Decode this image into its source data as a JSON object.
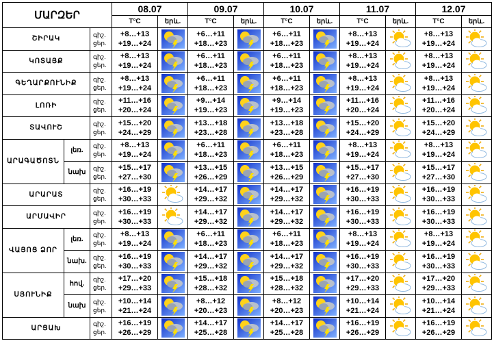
{
  "header": {
    "title": "ՄԱՐԶԵՐ",
    "dates": [
      "08.07",
      "09.07",
      "10.07",
      "11.07",
      "12.07"
    ],
    "temp_label": "T°C",
    "icon_label": "երև."
  },
  "labels": {
    "night": "գիշ.",
    "day": "ցեր."
  },
  "regions": [
    {
      "name": "ՇԻՐԱԿ",
      "zones": [
        {
          "forecast": [
            {
              "night": "+8…+13",
              "day": "+19…+24"
            },
            {
              "night": "+6…+11",
              "day": "+18…+23"
            },
            {
              "night": "+6…+11",
              "day": "+18…+23"
            },
            {
              "night": "+8…+13",
              "day": "+19…+24"
            },
            {
              "night": "+8…+13",
              "day": "+19…+24"
            }
          ]
        }
      ]
    },
    {
      "name": "ԿՈՏԱՅՔ",
      "zones": [
        {
          "forecast": [
            {
              "night": "+8…+13",
              "day": "+19…+24"
            },
            {
              "night": "+6…+11",
              "day": "+18…+23"
            },
            {
              "night": "+6…+11",
              "day": "+18…+23"
            },
            {
              "night": "+8…+13",
              "day": "+19…+24"
            },
            {
              "night": "+8…+13",
              "day": "+19…+24"
            }
          ]
        }
      ]
    },
    {
      "name": "ԳԵՂԱՐՔՈՒՆԻՔ",
      "zones": [
        {
          "forecast": [
            {
              "night": "+8…+13",
              "day": "+19…+24"
            },
            {
              "night": "+6…+11",
              "day": "+18…+23"
            },
            {
              "night": "+6…+11",
              "day": "+18…+23"
            },
            {
              "night": "+8…+13",
              "day": "+19…+24"
            },
            {
              "night": "+8…+13",
              "day": "+19…+24"
            }
          ]
        }
      ]
    },
    {
      "name": "ԼՈՌԻ",
      "zones": [
        {
          "forecast": [
            {
              "night": "+11…+16",
              "day": "+20…+24"
            },
            {
              "night": "+9…+14",
              "day": "+19…+23"
            },
            {
              "night": "+9…+14",
              "day": "+19…+23"
            },
            {
              "night": "+11…+16",
              "day": "+20…+24"
            },
            {
              "night": "+11…+16",
              "day": "+20…+24"
            }
          ]
        }
      ]
    },
    {
      "name": "ՏԱՎՈՒՇ",
      "zones": [
        {
          "forecast": [
            {
              "night": "+15…+20",
              "day": "+24…+29"
            },
            {
              "night": "+13…+18",
              "day": "+23…+28"
            },
            {
              "night": "+13…+18",
              "day": "+23…+28"
            },
            {
              "night": "+15…+20",
              "day": "+24…+29"
            },
            {
              "night": "+15…+20",
              "day": "+24…+29"
            }
          ]
        }
      ]
    },
    {
      "name": "ԱՐԱԳԱԾՈՏՆ",
      "zones": [
        {
          "label": "լեռ.",
          "forecast": [
            {
              "night": "+8…+13",
              "day": "+19…+24"
            },
            {
              "night": "+6…+11",
              "day": "+18…+23"
            },
            {
              "night": "+6…+11",
              "day": "+18…+23"
            },
            {
              "night": "+8…+13",
              "day": "+19…+24"
            },
            {
              "night": "+8…+13",
              "day": "+19…+24"
            }
          ]
        },
        {
          "label": "նախ",
          "forecast": [
            {
              "night": "+15…+17",
              "day": "+27…+30"
            },
            {
              "night": "+13…+15",
              "day": "+26…+29"
            },
            {
              "night": "+13…+15",
              "day": "+26…+29"
            },
            {
              "night": "+15…+17",
              "day": "+27…+30"
            },
            {
              "night": "+15…+17",
              "day": "+27…+30"
            }
          ]
        }
      ]
    },
    {
      "name": "ԱՐԱՐԱՏ",
      "zones": [
        {
          "forecast": [
            {
              "night": "+16…+19",
              "day": "+30…+33"
            },
            {
              "night": "+14…+17",
              "day": "+29…+32"
            },
            {
              "night": "+14…+17",
              "day": "+29…+32"
            },
            {
              "night": "+16…+19",
              "day": "+30…+33"
            },
            {
              "night": "+16…+19",
              "day": "+30…+33"
            }
          ]
        }
      ]
    },
    {
      "name": "ԱՐՄԱՎԻՐ",
      "zones": [
        {
          "forecast": [
            {
              "night": "+16…+19",
              "day": "+30…+33"
            },
            {
              "night": "+14…+17",
              "day": "+29…+32"
            },
            {
              "night": "+14…+17",
              "day": "+29…+32"
            },
            {
              "night": "+16…+19",
              "day": "+30…+33"
            },
            {
              "night": "+16…+19",
              "day": "+30…+33"
            }
          ]
        }
      ]
    },
    {
      "name": "ՎԱՅՈՑ ՁՈՐ",
      "zones": [
        {
          "label": "լեռ.",
          "forecast": [
            {
              "night": "+8…+13",
              "day": "+19…+24"
            },
            {
              "night": "+6…+11",
              "day": "+18…+23"
            },
            {
              "night": "+6…+11",
              "day": "+18…+23"
            },
            {
              "night": "+8…+13",
              "day": "+19…+24"
            },
            {
              "night": "+8…+13",
              "day": "+19…+24"
            }
          ]
        },
        {
          "label": "նախ.",
          "forecast": [
            {
              "night": "+16…+19",
              "day": "+30…+33"
            },
            {
              "night": "+14…+17",
              "day": "+29…+32"
            },
            {
              "night": "+14…+17",
              "day": "+29…+32"
            },
            {
              "night": "+16…+19",
              "day": "+30…+33"
            },
            {
              "night": "+16…+19",
              "day": "+30…+33"
            }
          ]
        }
      ]
    },
    {
      "name": "ՍՅՈՒՆԻՔ",
      "zones": [
        {
          "label": "հով.",
          "forecast": [
            {
              "night": "+17…+20",
              "day": "+29…+33"
            },
            {
              "night": "+15…+18",
              "day": "+28…+32"
            },
            {
              "night": "+15…+18",
              "day": "+28…+32"
            },
            {
              "night": "+17…+20",
              "day": "+29…+33"
            },
            {
              "night": "+17…+20",
              "day": "+29…+33"
            }
          ]
        },
        {
          "label": "նախ",
          "forecast": [
            {
              "night": "+10…+14",
              "day": "+21…+24"
            },
            {
              "night": "+8…+12",
              "day": "+20…+23"
            },
            {
              "night": "+8…+12",
              "day": "+20…+23"
            },
            {
              "night": "+10…+14",
              "day": "+21…+24"
            },
            {
              "night": "+10…+14",
              "day": "+21…+24"
            }
          ]
        }
      ]
    },
    {
      "name": "ԱՐՑԱԽ",
      "zones": [
        {
          "forecast": [
            {
              "night": "+16…+19",
              "day": "+26…+29"
            },
            {
              "night": "+14…+17",
              "day": "+25…+28"
            },
            {
              "night": "+14…+17",
              "day": "+25…+28"
            },
            {
              "night": "+16…+19",
              "day": "+26…+29"
            },
            {
              "night": "+16…+19",
              "day": "+26…+29"
            }
          ]
        }
      ]
    }
  ]
}
